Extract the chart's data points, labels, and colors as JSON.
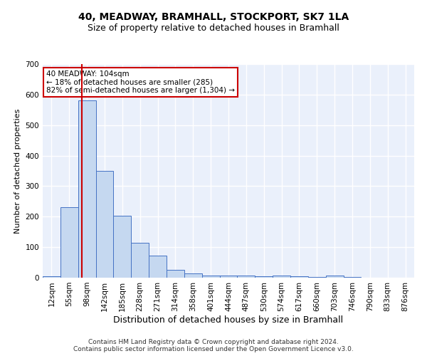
{
  "title": "40, MEADWAY, BRAMHALL, STOCKPORT, SK7 1LA",
  "subtitle": "Size of property relative to detached houses in Bramhall",
  "xlabel": "Distribution of detached houses by size in Bramhall",
  "ylabel": "Number of detached properties",
  "bar_labels": [
    "12sqm",
    "55sqm",
    "98sqm",
    "142sqm",
    "185sqm",
    "228sqm",
    "271sqm",
    "314sqm",
    "358sqm",
    "401sqm",
    "444sqm",
    "487sqm",
    "530sqm",
    "574sqm",
    "617sqm",
    "660sqm",
    "703sqm",
    "746sqm",
    "790sqm",
    "833sqm",
    "876sqm"
  ],
  "bar_values": [
    5,
    232,
    580,
    350,
    203,
    115,
    72,
    25,
    13,
    8,
    6,
    6,
    5,
    6,
    5,
    2,
    6,
    2,
    0,
    0,
    0
  ],
  "bar_color": "#c5d8f0",
  "bar_edge_color": "#4472c4",
  "bg_color": "#eaf0fb",
  "grid_color": "#ffffff",
  "red_line_x": 1.73,
  "annotation_text": "40 MEADWAY: 104sqm\n← 18% of detached houses are smaller (285)\n82% of semi-detached houses are larger (1,304) →",
  "annotation_box_color": "#ffffff",
  "annotation_box_edge": "#cc0000",
  "footer_text": "Contains HM Land Registry data © Crown copyright and database right 2024.\nContains public sector information licensed under the Open Government Licence v3.0.",
  "ylim": [
    0,
    700
  ],
  "yticks": [
    0,
    100,
    200,
    300,
    400,
    500,
    600,
    700
  ],
  "title_fontsize": 10,
  "subtitle_fontsize": 9,
  "ylabel_fontsize": 8,
  "xlabel_fontsize": 9,
  "tick_fontsize": 7.5,
  "footer_fontsize": 6.5
}
